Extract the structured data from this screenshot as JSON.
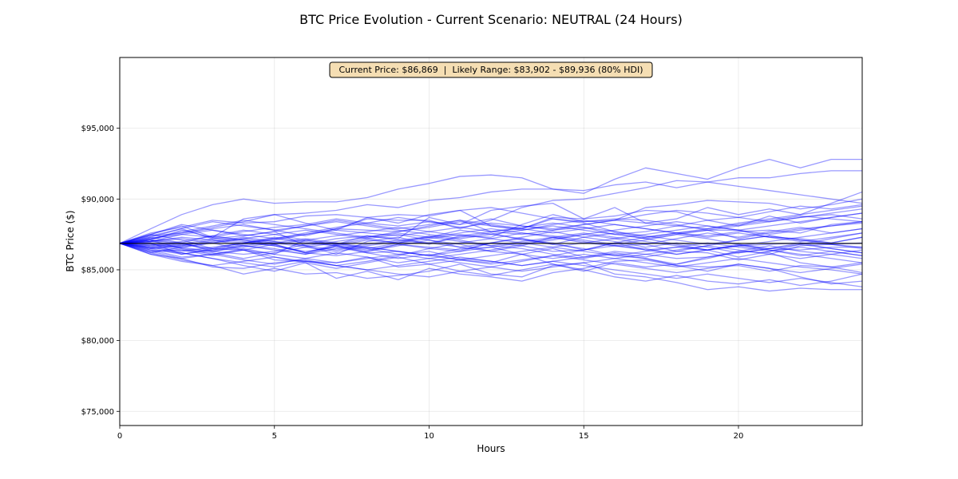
{
  "chart_data": {
    "type": "line",
    "title": "BTC Price Evolution - Current Scenario: NEUTRAL (24 Hours)",
    "xlabel": "Hours",
    "ylabel": "BTC Price ($)",
    "xlim": [
      0,
      24
    ],
    "ylim": [
      74000,
      100000
    ],
    "x_ticks": [
      0,
      5,
      10,
      15,
      20
    ],
    "y_ticks": [
      75000,
      80000,
      85000,
      90000,
      95000
    ],
    "y_tick_labels": [
      "$75,000",
      "$80,000",
      "$85,000",
      "$90,000",
      "$95,000"
    ],
    "grid": true,
    "annotation": "Current Price: $86,869  |  Likely Range: $83,902 - $89,936 (80% HDI)",
    "current_price": 86869,
    "hdi_range": [
      83902,
      89936
    ],
    "colors": {
      "paths": "#0000ff",
      "reference": "#000000",
      "annotation_bg": "#f5deb3"
    },
    "reference_line": {
      "y": 86869
    },
    "x": [
      0,
      1,
      2,
      3,
      4,
      5,
      6,
      7,
      8,
      9,
      10,
      11,
      12,
      13,
      14,
      15,
      16,
      17,
      18,
      19,
      20,
      21,
      22,
      23,
      24
    ],
    "series": [
      {
        "values": [
          86869,
          87500,
          88100,
          87300,
          88600,
          88900,
          88300,
          87800,
          88700,
          88300,
          88900,
          89200,
          88100,
          87900,
          88700,
          88600,
          89400,
          88300,
          88600,
          89400,
          88900,
          89300,
          88900,
          89700,
          90500
        ]
      },
      {
        "values": [
          86869,
          87900,
          88900,
          89600,
          90000,
          89700,
          89800,
          89800,
          90100,
          90700,
          91100,
          91600,
          91700,
          91500,
          90700,
          90400,
          91400,
          92200,
          91800,
          91400,
          92200,
          92800,
          92200,
          92800,
          92800
        ]
      },
      {
        "values": [
          86869,
          87300,
          87900,
          87200,
          87400,
          87700,
          86700,
          86100,
          87000,
          87300,
          86800,
          87400,
          87300,
          88200,
          88900,
          88400,
          88500,
          89400,
          89600,
          89900,
          89800,
          89700,
          89300,
          89600,
          90000
        ]
      },
      {
        "values": [
          86869,
          87100,
          86500,
          86100,
          86500,
          86100,
          87100,
          86800,
          87400,
          87200,
          88700,
          88200,
          89200,
          89500,
          89700,
          88600,
          88800,
          89200,
          89100,
          88500,
          88100,
          88800,
          88300,
          88700,
          89000
        ]
      },
      {
        "values": [
          86869,
          87500,
          87100,
          86500,
          86900,
          87100,
          87500,
          87900,
          88600,
          88500,
          88500,
          87900,
          88500,
          89400,
          89900,
          90000,
          90400,
          90800,
          91300,
          91200,
          91500,
          91500,
          91800,
          92000,
          92000
        ]
      },
      {
        "values": [
          86869,
          86400,
          86200,
          85800,
          85300,
          84900,
          85500,
          84400,
          84900,
          84300,
          85100,
          84700,
          84500,
          84200,
          84800,
          85100,
          85600,
          85700,
          85300,
          84900,
          85400,
          85100,
          84500,
          84000,
          84200
        ]
      },
      {
        "values": [
          86869,
          86100,
          85600,
          85300,
          84700,
          85100,
          84700,
          84800,
          84400,
          84600,
          84900,
          85400,
          84700,
          84500,
          85300,
          85500,
          84700,
          84500,
          84100,
          83600,
          83800,
          83500,
          83700,
          83600,
          83600
        ]
      },
      {
        "values": [
          86869,
          86300,
          86400,
          86000,
          86400,
          85700,
          85600,
          85500,
          85900,
          85200,
          85400,
          85700,
          85500,
          86100,
          85400,
          84900,
          85500,
          85200,
          85400,
          85900,
          86300,
          86200,
          85500,
          85200,
          84800
        ]
      },
      {
        "values": [
          86869,
          87100,
          87800,
          87300,
          87100,
          86800,
          86200,
          86700,
          86300,
          86800,
          86600,
          86400,
          86900,
          86700,
          86300,
          86400,
          86900,
          86400,
          86600,
          86400,
          86700,
          86800,
          86900,
          86800,
          86600
        ]
      },
      {
        "values": [
          86869,
          86900,
          86100,
          86500,
          86400,
          86800,
          86200,
          86000,
          86300,
          86700,
          87100,
          86800,
          86300,
          86700,
          87300,
          86900,
          86700,
          86800,
          86300,
          86200,
          85700,
          86100,
          86700,
          86800,
          86900
        ]
      },
      {
        "values": [
          86869,
          87400,
          87600,
          87900,
          88200,
          87800,
          87400,
          87900,
          87800,
          87700,
          88100,
          88500,
          87700,
          87900,
          88600,
          88300,
          87700,
          87300,
          87600,
          87400,
          87700,
          87800,
          87600,
          88200,
          88400
        ]
      },
      {
        "values": [
          86869,
          86500,
          86700,
          87100,
          86700,
          86500,
          86100,
          86700,
          86200,
          86300,
          86000,
          86500,
          86600,
          86100,
          86500,
          85900,
          86100,
          85800,
          85300,
          85200,
          85300,
          84900,
          85300,
          85200,
          85500
        ]
      },
      {
        "values": [
          86869,
          87100,
          86900,
          86400,
          86800,
          87200,
          86900,
          86700,
          87100,
          86900,
          86900,
          87300,
          87600,
          87100,
          86900,
          86400,
          86900,
          87300,
          87600,
          87800,
          87800,
          87300,
          87200,
          86900,
          87300
        ]
      },
      {
        "values": [
          86869,
          86600,
          86300,
          86600,
          86900,
          86700,
          86200,
          86800,
          86500,
          86100,
          86300,
          85800,
          85600,
          85300,
          85600,
          85900,
          86300,
          86100,
          85800,
          85900,
          86200,
          86500,
          86400,
          86600,
          86600
        ]
      },
      {
        "values": [
          86869,
          87600,
          88000,
          88500,
          88300,
          88400,
          88800,
          88900,
          88700,
          88900,
          88800,
          89200,
          89400,
          89000,
          88600,
          88400,
          88600,
          88500,
          88200,
          87800,
          87200,
          87600,
          87900,
          88100,
          88300
        ]
      },
      {
        "values": [
          86869,
          86100,
          85800,
          85200,
          85100,
          85500,
          85700,
          85300,
          85600,
          86000,
          86500,
          86300,
          86900,
          87200,
          86800,
          86500,
          86000,
          85800,
          85400,
          85800,
          86300,
          86700,
          86300,
          86100,
          85800
        ]
      },
      {
        "values": [
          86869,
          87200,
          87600,
          88000,
          88400,
          88900,
          89000,
          89200,
          89600,
          89400,
          89900,
          90100,
          90500,
          90700,
          90700,
          90600,
          91000,
          91200,
          90800,
          91200,
          90900,
          90600,
          90300,
          90000,
          89700
        ]
      },
      {
        "values": [
          86869,
          86600,
          86900,
          86300,
          86100,
          86300,
          86800,
          87200,
          87400,
          87100,
          87300,
          87800,
          87500,
          87200,
          86800,
          87300,
          87600,
          87200,
          86800,
          86400,
          85900,
          86300,
          86800,
          87200,
          87600
        ]
      },
      {
        "values": [
          86869,
          86200,
          86600,
          86900,
          86400,
          85900,
          85500,
          85100,
          85500,
          85900,
          85400,
          84900,
          84600,
          85000,
          85400,
          85000,
          84500,
          84200,
          84600,
          84200,
          84000,
          84300,
          83900,
          84200,
          84700
        ]
      },
      {
        "values": [
          86869,
          87000,
          87500,
          87300,
          87700,
          88000,
          88200,
          88600,
          88300,
          88700,
          88400,
          88200,
          88600,
          88100,
          87800,
          88000,
          87500,
          87700,
          88100,
          88500,
          88700,
          88400,
          88700,
          88900,
          88600
        ]
      },
      {
        "values": [
          86869,
          86700,
          86400,
          86200,
          85800,
          86200,
          86600,
          86900,
          86500,
          86900,
          87400,
          87100,
          86700,
          86500,
          86100,
          85800,
          86200,
          85900,
          86300,
          86700,
          87100,
          87400,
          87100,
          86900,
          87300
        ]
      },
      {
        "values": [
          86869,
          87300,
          86900,
          87400,
          87800,
          87500,
          87100,
          86800,
          87200,
          87500,
          87100,
          86600,
          86900,
          87300,
          87700,
          87300,
          87000,
          86600,
          86900,
          86600,
          86200,
          86500,
          86900,
          86500,
          86200
        ]
      },
      {
        "values": [
          86869,
          86400,
          85900,
          86100,
          85700,
          85400,
          85800,
          86200,
          85900,
          85500,
          85800,
          86100,
          86400,
          86800,
          87100,
          87500,
          87200,
          86800,
          87200,
          87600,
          87300,
          87700,
          88000,
          87600,
          87900
        ]
      },
      {
        "values": [
          86869,
          87200,
          87500,
          87800,
          87500,
          87200,
          87600,
          88000,
          88300,
          88100,
          88400,
          88000,
          87700,
          87500,
          87800,
          88200,
          88500,
          88900,
          89200,
          89000,
          88700,
          89100,
          89500,
          89300,
          89600
        ]
      },
      {
        "values": [
          86869,
          86500,
          86800,
          87200,
          87000,
          86700,
          86300,
          86600,
          86200,
          85800,
          86100,
          85700,
          85400,
          85700,
          86000,
          86400,
          86700,
          86500,
          86100,
          86400,
          86800,
          86400,
          86000,
          86300,
          86000
        ]
      },
      {
        "values": [
          86869,
          87100,
          86800,
          86500,
          86900,
          87300,
          87000,
          86700,
          86400,
          86800,
          86500,
          86900,
          87200,
          87600,
          87400,
          87100,
          86800,
          87100,
          87500,
          87200,
          86800,
          86500,
          86800,
          86500,
          86200
        ]
      },
      {
        "values": [
          86869,
          86800,
          86500,
          86300,
          86700,
          86400,
          86100,
          86500,
          86800,
          87100,
          86900,
          86600,
          86300,
          86100,
          85800,
          86100,
          85800,
          85500,
          85200,
          85500,
          85800,
          85500,
          85200,
          85000,
          84700
        ]
      },
      {
        "values": [
          86869,
          87200,
          87700,
          88100,
          88500,
          88200,
          87900,
          87600,
          87300,
          87700,
          88000,
          88400,
          88100,
          87800,
          88200,
          88500,
          88200,
          87900,
          87600,
          87900,
          88300,
          88600,
          88900,
          89200,
          89500
        ]
      },
      {
        "values": [
          86869,
          86600,
          86200,
          85800,
          85500,
          85200,
          85600,
          85300,
          85000,
          84700,
          84500,
          84900,
          85200,
          85600,
          86000,
          85700,
          85400,
          85100,
          84800,
          85100,
          85400,
          85100,
          84800,
          85100,
          85400
        ]
      },
      {
        "values": [
          86869,
          87000,
          87200,
          86900,
          87200,
          87500,
          87800,
          87500,
          87200,
          86900,
          87200,
          87500,
          87200,
          86900,
          86600,
          86900,
          87200,
          87500,
          87800,
          88100,
          87800,
          87500,
          87800,
          88100,
          88400
        ]
      },
      {
        "values": [
          86869,
          86500,
          86100,
          86400,
          86700,
          87000,
          86700,
          86400,
          86700,
          87000,
          87300,
          87600,
          87900,
          87600,
          87300,
          87000,
          86700,
          86400,
          86100,
          86400,
          86700,
          86400,
          86100,
          85800,
          85500
        ]
      },
      {
        "values": [
          86869,
          87400,
          87900,
          88400,
          88100,
          87800,
          88100,
          88400,
          88100,
          87800,
          87500,
          87200,
          87500,
          87800,
          88100,
          87800,
          87500,
          87200,
          87500,
          87800,
          88100,
          88400,
          88700,
          89000,
          89300
        ]
      },
      {
        "values": [
          86869,
          86300,
          85800,
          86100,
          86400,
          86100,
          85800,
          85500,
          85800,
          86100,
          85800,
          85500,
          85200,
          84900,
          85200,
          85500,
          85800,
          86100,
          86400,
          86700,
          86400,
          86100,
          85800,
          86100,
          86400
        ]
      },
      {
        "values": [
          86869,
          87000,
          86700,
          87000,
          87300,
          87000,
          86700,
          87000,
          87300,
          87600,
          87300,
          87000,
          86700,
          87000,
          87300,
          87600,
          87300,
          87000,
          86700,
          86400,
          86700,
          87000,
          87300,
          87600,
          87900
        ]
      },
      {
        "values": [
          86869,
          86700,
          87000,
          87400,
          87100,
          86800,
          87100,
          87400,
          87700,
          88000,
          87700,
          87400,
          87700,
          88000,
          88300,
          88000,
          87700,
          87400,
          87100,
          86800,
          87100,
          87400,
          87100,
          86800,
          86500
        ]
      },
      {
        "values": [
          86869,
          86900,
          86600,
          86300,
          86600,
          86900,
          87200,
          86900,
          86600,
          86300,
          86000,
          86300,
          86600,
          86900,
          87200,
          87500,
          87800,
          88100,
          88400,
          88100,
          87800,
          88100,
          88400,
          88700,
          89000
        ]
      },
      {
        "values": [
          86869,
          87500,
          88200,
          87800,
          87400,
          87700,
          88100,
          88500,
          88200,
          87900,
          88200,
          88500,
          88200,
          87900,
          87600,
          87900,
          88200,
          87900,
          87600,
          87300,
          87600,
          87300,
          87000,
          87300,
          87600
        ]
      },
      {
        "values": [
          86869,
          86200,
          85700,
          85300,
          85600,
          85900,
          85600,
          85300,
          85000,
          85300,
          85600,
          85900,
          85600,
          85300,
          85600,
          85300,
          85000,
          84700,
          84400,
          84700,
          84400,
          84100,
          84400,
          84100,
          83800
        ]
      },
      {
        "values": [
          86869,
          87000,
          87300,
          87100,
          86900,
          87200,
          87500,
          87800,
          87600,
          87400,
          87700,
          88000,
          88300,
          88100,
          87900,
          88200,
          88500,
          88300,
          88100,
          87900,
          88200,
          88500,
          88800,
          88600,
          88400
        ]
      },
      {
        "values": [
          86869,
          86800,
          86600,
          86900,
          87200,
          86900,
          86600,
          86300,
          86600,
          86300,
          86000,
          85700,
          86000,
          86300,
          86600,
          86300,
          86000,
          86300,
          86600,
          86900,
          86600,
          86300,
          86600,
          86300,
          86000
        ]
      }
    ]
  }
}
